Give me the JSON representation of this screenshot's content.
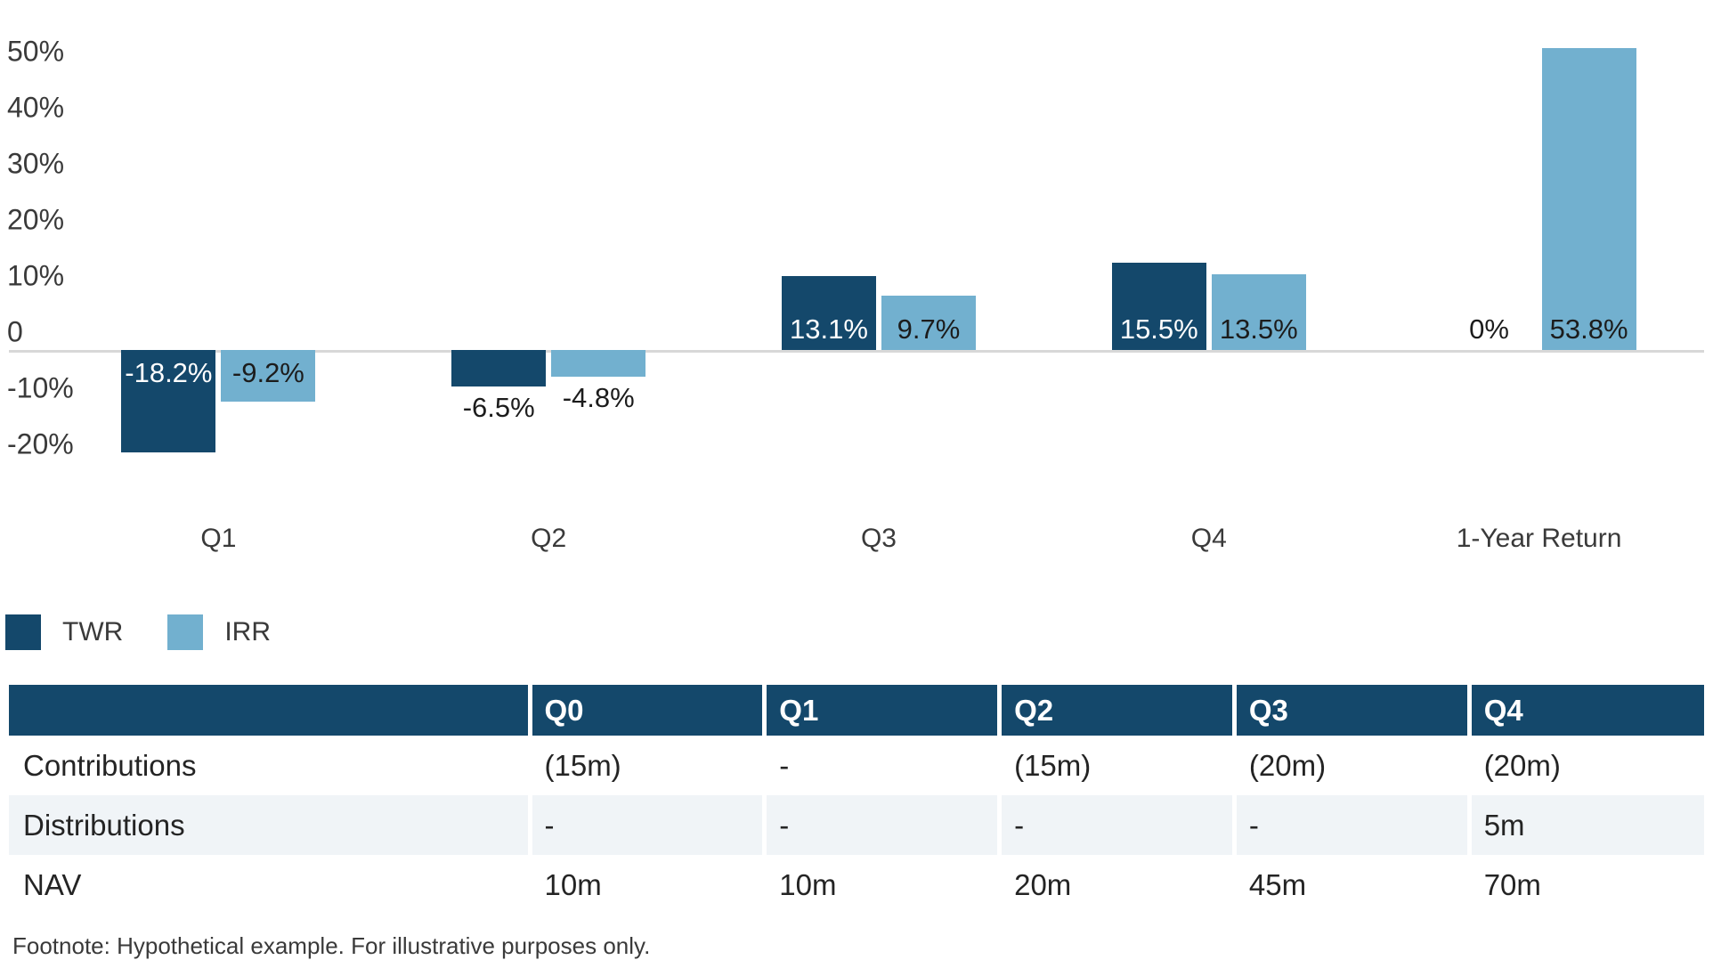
{
  "chart_data": {
    "type": "bar",
    "title": "",
    "xlabel": "",
    "ylabel": "",
    "categories": [
      "Q1",
      "Q2",
      "Q3",
      "Q4",
      "1-Year Return"
    ],
    "series": [
      {
        "name": "TWR",
        "color": "#14486b",
        "values": [
          -18.2,
          -6.5,
          13.1,
          15.5,
          0
        ],
        "labels": [
          "-18.2%",
          "-6.5%",
          "13.1%",
          "15.5%",
          "0%"
        ]
      },
      {
        "name": "IRR",
        "color": "#72b0cf",
        "values": [
          -9.2,
          -4.8,
          9.7,
          13.5,
          53.8
        ],
        "labels": [
          "-9.2%",
          "-4.8%",
          "9.7%",
          "13.5%",
          "53.8%"
        ]
      }
    ],
    "y_axis": {
      "ticks": [
        {
          "value": 50,
          "label": "50%"
        },
        {
          "value": 40,
          "label": "40%"
        },
        {
          "value": 30,
          "label": "30%"
        },
        {
          "value": 20,
          "label": "20%"
        },
        {
          "value": 10,
          "label": "10%"
        },
        {
          "value": 0,
          "label": "0"
        },
        {
          "value": -10,
          "label": "-10%"
        },
        {
          "value": -20,
          "label": "-20%"
        }
      ],
      "range": [
        -24,
        58
      ]
    },
    "grid": false,
    "zero_line_color": "#d8d8d8",
    "legend_position": "bottom-left"
  },
  "legend": {
    "items": [
      {
        "label": "TWR",
        "color": "#14486b"
      },
      {
        "label": "IRR",
        "color": "#72b0cf"
      }
    ]
  },
  "table": {
    "header_bg": "#14486b",
    "alt_row_bg": "#f0f4f7",
    "column_headers": [
      "",
      "Q0",
      "Q1",
      "Q2",
      "Q3",
      "Q4"
    ],
    "rows": [
      {
        "label": "Contributions",
        "values": [
          "(15m)",
          "-",
          "(15m)",
          "(20m)",
          "(20m)"
        ]
      },
      {
        "label": "Distributions",
        "values": [
          "-",
          "-",
          "-",
          "-",
          "5m"
        ]
      },
      {
        "label": "NAV",
        "values": [
          "10m",
          "10m",
          "20m",
          "45m",
          "70m"
        ]
      }
    ]
  },
  "footnote": "Footnote: Hypothetical example. For illustrative purposes only."
}
